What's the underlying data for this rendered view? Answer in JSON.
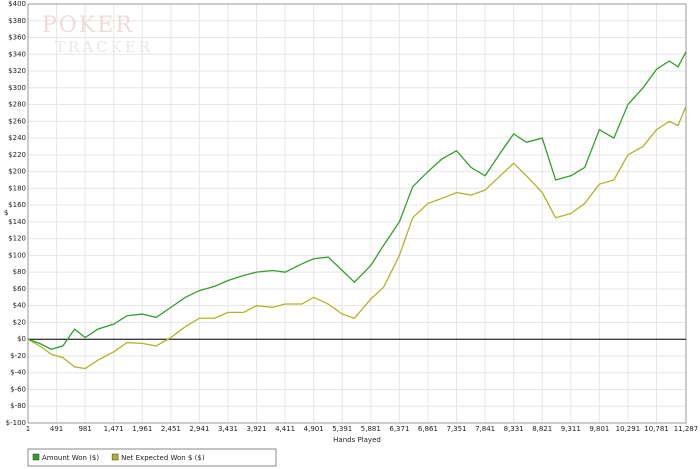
{
  "chart_data": {
    "type": "line",
    "watermark": [
      "POKER",
      "TRACKER"
    ],
    "y_label": "$",
    "x_label": "Hands Played",
    "x": [
      1,
      200,
      400,
      600,
      800,
      981,
      1200,
      1471,
      1700,
      1961,
      2200,
      2451,
      2700,
      2941,
      3200,
      3431,
      3700,
      3921,
      4200,
      4411,
      4700,
      4901,
      5150,
      5391,
      5600,
      5881,
      6100,
      6371,
      6600,
      6861,
      7100,
      7351,
      7600,
      7841,
      8100,
      8331,
      8550,
      8821,
      9050,
      9311,
      9550,
      9801,
      10050,
      10291,
      10550,
      10781,
      11000,
      11150,
      11287
    ],
    "series": [
      {
        "name": "Amount Won ($)",
        "color": "#34a02c",
        "values": [
          0,
          -5,
          -12,
          -8,
          12,
          2,
          12,
          18,
          28,
          30,
          26,
          38,
          50,
          58,
          63,
          70,
          76,
          80,
          82,
          80,
          90,
          96,
          98,
          82,
          68,
          88,
          112,
          140,
          182,
          200,
          215,
          225,
          205,
          195,
          222,
          245,
          235,
          240,
          190,
          195,
          205,
          250,
          240,
          280,
          300,
          322,
          332,
          325,
          343
        ]
      },
      {
        "name": "Net Expected Won $ ($)",
        "color": "#b2b32a",
        "values": [
          0,
          -8,
          -18,
          -22,
          -33,
          -35,
          -25,
          -15,
          -4,
          -5,
          -8,
          2,
          15,
          25,
          25,
          32,
          32,
          40,
          38,
          42,
          42,
          50,
          42,
          30,
          25,
          48,
          62,
          100,
          145,
          162,
          168,
          175,
          172,
          178,
          195,
          210,
          195,
          175,
          145,
          150,
          162,
          185,
          190,
          220,
          230,
          250,
          260,
          255,
          278
        ]
      }
    ],
    "xlim": [
      1,
      11287
    ],
    "xticks": [
      1,
      491,
      981,
      {
        "value": 1471,
        "label": "1,471"
      },
      {
        "value": 1961,
        "label": "1,961"
      },
      {
        "value": 2451,
        "label": "2,451"
      },
      {
        "value": 2941,
        "label": "2,941"
      },
      {
        "value": 3431,
        "label": "3,431"
      },
      {
        "value": 3921,
        "label": "3,921"
      },
      {
        "value": 4411,
        "label": "4,411"
      },
      {
        "value": 4901,
        "label": "4,901"
      },
      {
        "value": 5391,
        "label": "5,391"
      },
      {
        "value": 5881,
        "label": "5,881"
      },
      {
        "value": 6371,
        "label": "6,371"
      },
      {
        "value": 6861,
        "label": "6,861"
      },
      {
        "value": 7351,
        "label": "7,351"
      },
      {
        "value": 7841,
        "label": "7,841"
      },
      {
        "value": 8331,
        "label": "8,331"
      },
      {
        "value": 8821,
        "label": "8,821"
      },
      {
        "value": 9311,
        "label": "9,311"
      },
      {
        "value": 9801,
        "label": "9,801"
      },
      {
        "value": 10291,
        "label": "10,291"
      },
      {
        "value": 10781,
        "label": "10,781"
      },
      {
        "value": 11287,
        "label": "11,287"
      }
    ],
    "ylim": [
      -100,
      400
    ],
    "yticks": [
      {
        "value": -100,
        "label": "$-100"
      },
      {
        "value": -80,
        "label": "$-80"
      },
      {
        "value": -60,
        "label": "$-60"
      },
      {
        "value": -40,
        "label": "$-40"
      },
      {
        "value": -20,
        "label": "$-20"
      },
      {
        "value": 0,
        "label": "$0"
      },
      {
        "value": 20,
        "label": "$20"
      },
      {
        "value": 40,
        "label": "$40"
      },
      {
        "value": 60,
        "label": "$60"
      },
      {
        "value": 80,
        "label": "$80"
      },
      {
        "value": 100,
        "label": "$100"
      },
      {
        "value": 120,
        "label": "$120"
      },
      {
        "value": 140,
        "label": "$140"
      },
      {
        "value": 160,
        "label": "$160"
      },
      {
        "value": 180,
        "label": "$180"
      },
      {
        "value": 200,
        "label": "$200"
      },
      {
        "value": 220,
        "label": "$220"
      },
      {
        "value": 240,
        "label": "$240"
      },
      {
        "value": 260,
        "label": "$260"
      },
      {
        "value": 280,
        "label": "$280"
      },
      {
        "value": 300,
        "label": "$300"
      },
      {
        "value": 320,
        "label": "$320"
      },
      {
        "value": 340,
        "label": "$340"
      },
      {
        "value": 360,
        "label": "$360"
      },
      {
        "value": 380,
        "label": "$380"
      },
      {
        "value": 400,
        "label": "$400"
      }
    ],
    "grid": true
  }
}
